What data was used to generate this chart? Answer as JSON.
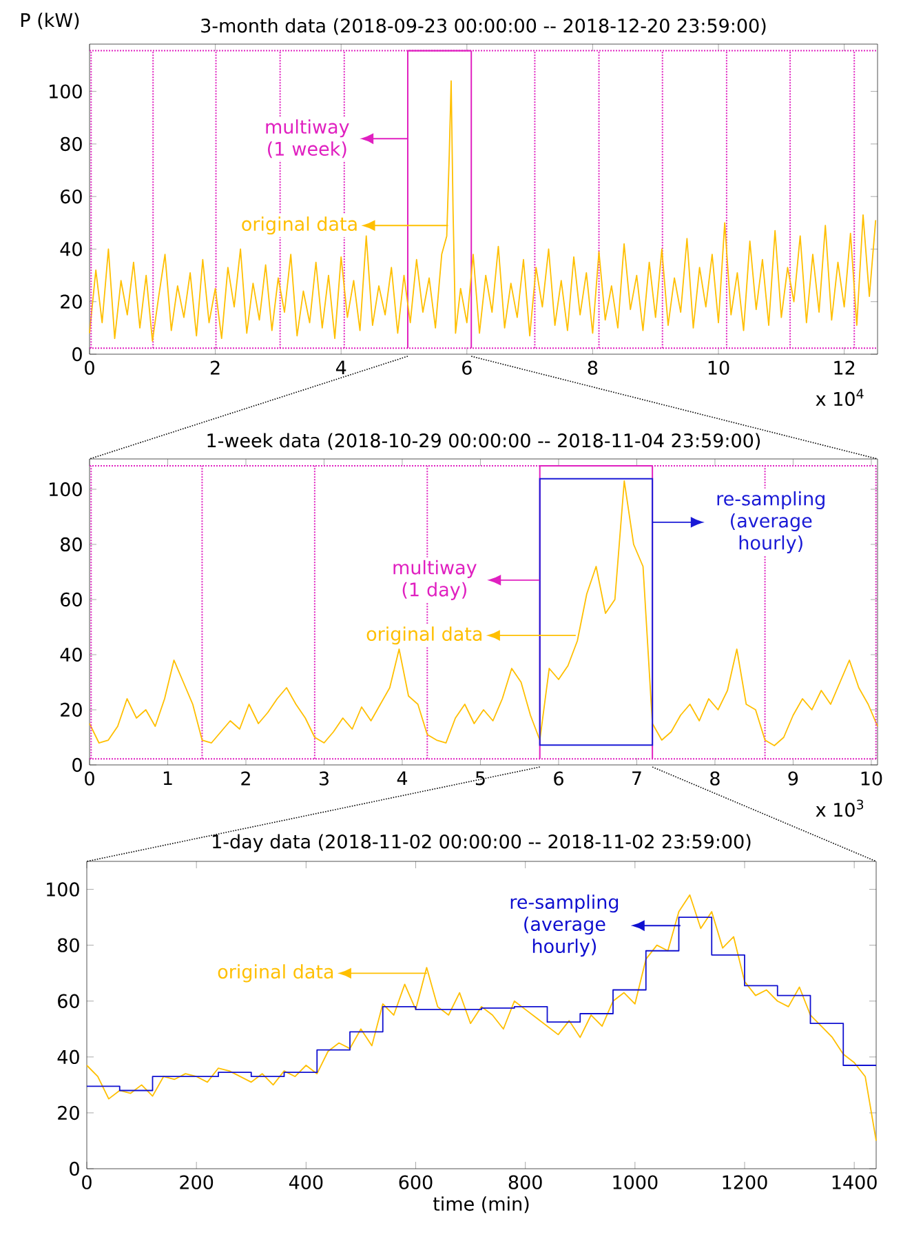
{
  "chart_data": [
    {
      "type": "line",
      "title": "3-month data (2018-09-23 00:00:00 -- 2018-12-20 23:59:00)",
      "ylabel": "P (kW)",
      "x": [
        0,
        0.1,
        0.2,
        0.3,
        0.4,
        0.5,
        0.6,
        0.7,
        0.8,
        0.9,
        1.0,
        1.1,
        1.2,
        1.3,
        1.4,
        1.5,
        1.6,
        1.7,
        1.8,
        1.9,
        2.0,
        2.1,
        2.2,
        2.3,
        2.4,
        2.5,
        2.6,
        2.7,
        2.8,
        2.9,
        3.0,
        3.1,
        3.2,
        3.3,
        3.4,
        3.5,
        3.6,
        3.7,
        3.8,
        3.9,
        4.0,
        4.1,
        4.2,
        4.3,
        4.4,
        4.5,
        4.6,
        4.7,
        4.8,
        4.9,
        5.0,
        5.1,
        5.2,
        5.3,
        5.4,
        5.5,
        5.6,
        5.68,
        5.72,
        5.75,
        5.78,
        5.82,
        5.9,
        6.0,
        6.1,
        6.2,
        6.3,
        6.4,
        6.5,
        6.6,
        6.7,
        6.8,
        6.9,
        7.0,
        7.1,
        7.2,
        7.3,
        7.4,
        7.5,
        7.6,
        7.7,
        7.8,
        7.9,
        8.0,
        8.1,
        8.2,
        8.3,
        8.4,
        8.5,
        8.6,
        8.7,
        8.8,
        8.9,
        9.0,
        9.1,
        9.2,
        9.3,
        9.4,
        9.5,
        9.6,
        9.7,
        9.8,
        9.9,
        10.0,
        10.1,
        10.2,
        10.3,
        10.4,
        10.5,
        10.6,
        10.7,
        10.8,
        10.9,
        11.0,
        11.1,
        11.2,
        11.3,
        11.4,
        11.5,
        11.6,
        11.7,
        11.8,
        11.9,
        12.0,
        12.1,
        12.2,
        12.3,
        12.4,
        12.5
      ],
      "series": [
        {
          "color": "#ffbf00",
          "values": [
            8,
            32,
            12,
            40,
            6,
            28,
            15,
            35,
            10,
            30,
            5,
            22,
            38,
            9,
            26,
            14,
            31,
            7,
            36,
            12,
            25,
            6,
            33,
            18,
            40,
            8,
            27,
            13,
            34,
            9,
            29,
            16,
            38,
            7,
            24,
            12,
            35,
            10,
            30,
            6,
            37,
            14,
            28,
            9,
            45,
            11,
            26,
            15,
            33,
            8,
            30,
            12,
            36,
            16,
            29,
            10,
            38,
            45,
            76,
            104,
            55,
            8,
            25,
            12,
            38,
            8,
            30,
            16,
            41,
            10,
            27,
            14,
            36,
            7,
            33,
            18,
            40,
            11,
            28,
            9,
            37,
            15,
            31,
            8,
            39,
            13,
            26,
            10,
            42,
            17,
            30,
            9,
            35,
            14,
            40,
            11,
            29,
            16,
            44,
            10,
            33,
            18,
            38,
            12,
            50,
            15,
            31,
            9,
            43,
            17,
            36,
            11,
            47,
            14,
            33,
            20,
            45,
            12,
            38,
            16,
            49,
            13,
            35,
            18,
            46,
            11,
            53,
            22,
            51
          ]
        }
      ],
      "xlim": [
        0,
        12.53
      ],
      "ylim": [
        0,
        118
      ],
      "xticks": [
        0,
        2,
        4,
        6,
        8,
        10,
        12
      ],
      "yticks": [
        0,
        20,
        40,
        60,
        80,
        100
      ],
      "ref_lines": [
        {
          "axis": "y",
          "value": 2.3,
          "color": "#e020c0",
          "line_style": "dotted"
        },
        {
          "axis": "y",
          "value": 115.5,
          "color": "#e020c0",
          "line_style": "dotted"
        },
        {
          "axis": "x",
          "value": 1.01,
          "color": "#e020c0",
          "line_style": "dotted"
        },
        {
          "axis": "x",
          "value": 2.01,
          "color": "#e020c0",
          "line_style": "dotted"
        },
        {
          "axis": "x",
          "value": 3.03,
          "color": "#e020c0",
          "line_style": "dotted"
        },
        {
          "axis": "x",
          "value": 4.05,
          "color": "#e020c0",
          "line_style": "dotted"
        },
        {
          "axis": "x",
          "value": 5.06,
          "color": "#e020c0",
          "line_style": "solid"
        },
        {
          "axis": "x",
          "value": 6.07,
          "color": "#e020c0",
          "line_style": "solid"
        },
        {
          "axis": "x",
          "value": 7.08,
          "color": "#e020c0",
          "line_style": "dotted"
        },
        {
          "axis": "x",
          "value": 8.1,
          "color": "#e020c0",
          "line_style": "dotted"
        },
        {
          "axis": "x",
          "value": 9.11,
          "color": "#e020c0",
          "line_style": "dotted"
        },
        {
          "axis": "x",
          "value": 10.13,
          "color": "#e020c0",
          "line_style": "dotted"
        },
        {
          "axis": "x",
          "value": 11.14,
          "color": "#e020c0",
          "line_style": "dotted"
        },
        {
          "axis": "x",
          "value": 12.16,
          "color": "#e020c0",
          "line_style": "dotted"
        }
      ],
      "annotations": [
        "multiway (1 week)",
        "original data",
        "x 10$^{4}$"
      ]
    },
    {
      "type": "line",
      "title": "1-week data (2018-10-29 00:00:00 -- 2018-11-04 23:59:00)",
      "x": [
        0,
        0.12,
        0.24,
        0.36,
        0.48,
        0.6,
        0.72,
        0.84,
        0.96,
        1.08,
        1.2,
        1.32,
        1.44,
        1.56,
        1.68,
        1.8,
        1.92,
        2.04,
        2.16,
        2.28,
        2.4,
        2.52,
        2.64,
        2.76,
        2.88,
        3.0,
        3.12,
        3.24,
        3.36,
        3.48,
        3.6,
        3.72,
        3.84,
        3.96,
        4.08,
        4.2,
        4.32,
        4.44,
        4.56,
        4.68,
        4.8,
        4.92,
        5.04,
        5.16,
        5.28,
        5.4,
        5.52,
        5.64,
        5.76,
        5.88,
        6.0,
        6.12,
        6.24,
        6.36,
        6.48,
        6.6,
        6.72,
        6.84,
        6.96,
        7.08,
        7.2,
        7.32,
        7.44,
        7.56,
        7.68,
        7.8,
        7.92,
        8.04,
        8.16,
        8.28,
        8.4,
        8.52,
        8.64,
        8.76,
        8.88,
        9.0,
        9.12,
        9.24,
        9.36,
        9.48,
        9.6,
        9.72,
        9.84,
        9.96,
        10.08
      ],
      "series": [
        {
          "color": "#ffbf00",
          "values": [
            15,
            8,
            9,
            14,
            24,
            17,
            20,
            14,
            24,
            38,
            30,
            22,
            9,
            8,
            12,
            16,
            13,
            22,
            15,
            19,
            24,
            28,
            22,
            17,
            10,
            8,
            12,
            17,
            13,
            21,
            16,
            22,
            28,
            42,
            25,
            22,
            11,
            9,
            8,
            17,
            22,
            15,
            20,
            16,
            24,
            35,
            30,
            18,
            9,
            35,
            31,
            36,
            45,
            62,
            72,
            55,
            60,
            103,
            80,
            72,
            15,
            9,
            12,
            18,
            22,
            16,
            24,
            20,
            27,
            42,
            22,
            20,
            9,
            7,
            10,
            18,
            24,
            20,
            27,
            22,
            30,
            38,
            28,
            22,
            14
          ]
        }
      ],
      "xlim": [
        0,
        10.08
      ],
      "ylim": [
        0,
        111
      ],
      "xticks": [
        0,
        1,
        2,
        3,
        4,
        5,
        6,
        7,
        8,
        9,
        10
      ],
      "yticks": [
        0,
        20,
        40,
        60,
        80,
        100
      ],
      "ref_lines": [
        {
          "axis": "y",
          "value": 2.2,
          "color": "#e020c0",
          "line_style": "dotted"
        },
        {
          "axis": "y",
          "value": 108.5,
          "color": "#e020c0",
          "line_style": "dotted"
        },
        {
          "axis": "x",
          "value": 1.44,
          "color": "#e020c0",
          "line_style": "dotted"
        },
        {
          "axis": "x",
          "value": 2.88,
          "color": "#e020c0",
          "line_style": "dotted"
        },
        {
          "axis": "x",
          "value": 4.32,
          "color": "#e020c0",
          "line_style": "dotted"
        },
        {
          "axis": "x",
          "value": 5.76,
          "color": "#e020c0",
          "line_style": "solid"
        },
        {
          "axis": "x",
          "value": 7.2,
          "color": "#e020c0",
          "line_style": "solid"
        },
        {
          "axis": "x",
          "value": 8.64,
          "color": "#e020c0",
          "line_style": "dotted"
        }
      ],
      "annotations": [
        "multiway (1 day)",
        "original data",
        "re-sampling (average hourly)",
        "x 10$^{3}$"
      ]
    },
    {
      "type": "line",
      "title": "1-day data (2018-11-02 00:00:00 -- 2018-11-02 23:59:00)",
      "xlabel": "time (min)",
      "x": [
        0,
        20,
        40,
        60,
        80,
        100,
        120,
        140,
        160,
        180,
        200,
        220,
        240,
        260,
        280,
        300,
        320,
        340,
        360,
        380,
        400,
        420,
        440,
        460,
        480,
        500,
        520,
        540,
        560,
        580,
        600,
        620,
        640,
        660,
        680,
        700,
        720,
        740,
        760,
        780,
        800,
        820,
        840,
        860,
        880,
        900,
        920,
        940,
        960,
        980,
        1000,
        1020,
        1040,
        1060,
        1080,
        1100,
        1120,
        1140,
        1160,
        1180,
        1200,
        1220,
        1240,
        1260,
        1280,
        1300,
        1320,
        1340,
        1360,
        1380,
        1400,
        1420,
        1440
      ],
      "series": [
        {
          "color": "#ffbf00",
          "values": [
            37,
            33,
            25,
            28,
            27,
            30,
            26,
            33,
            32,
            34,
            33,
            31,
            36,
            35,
            33,
            31,
            34,
            30,
            35,
            33,
            37,
            34,
            42,
            45,
            43,
            50,
            44,
            59,
            55,
            66,
            57,
            72,
            58,
            55,
            63,
            52,
            58,
            55,
            50,
            60,
            57,
            54,
            51,
            48,
            53,
            47,
            55,
            51,
            60,
            63,
            59,
            75,
            80,
            78,
            92,
            98,
            86,
            92,
            79,
            83,
            67,
            62,
            64,
            60,
            58,
            65,
            55,
            51,
            47,
            41,
            38,
            33,
            10
          ]
        },
        {
          "type": "step",
          "color": "#1010d0",
          "x": [
            0,
            60,
            120,
            180,
            240,
            300,
            360,
            420,
            480,
            540,
            600,
            660,
            720,
            780,
            840,
            900,
            960,
            1020,
            1080,
            1140,
            1200,
            1260,
            1320,
            1380,
            1440
          ],
          "values": [
            29.5,
            28,
            33,
            33,
            34.5,
            33,
            34.5,
            42.5,
            49,
            58,
            57,
            57,
            57.5,
            58,
            52.5,
            55.5,
            64,
            78,
            90,
            76.5,
            65.5,
            62,
            52,
            37,
            37
          ]
        }
      ],
      "xlim": [
        0,
        1440
      ],
      "ylim": [
        0,
        110
      ],
      "xticks": [
        0,
        200,
        400,
        600,
        800,
        1000,
        1200,
        1400
      ],
      "yticks": [
        0,
        20,
        40,
        60,
        80,
        100
      ],
      "annotations": [
        "original data",
        "re-sampling (average hourly)"
      ]
    }
  ]
}
